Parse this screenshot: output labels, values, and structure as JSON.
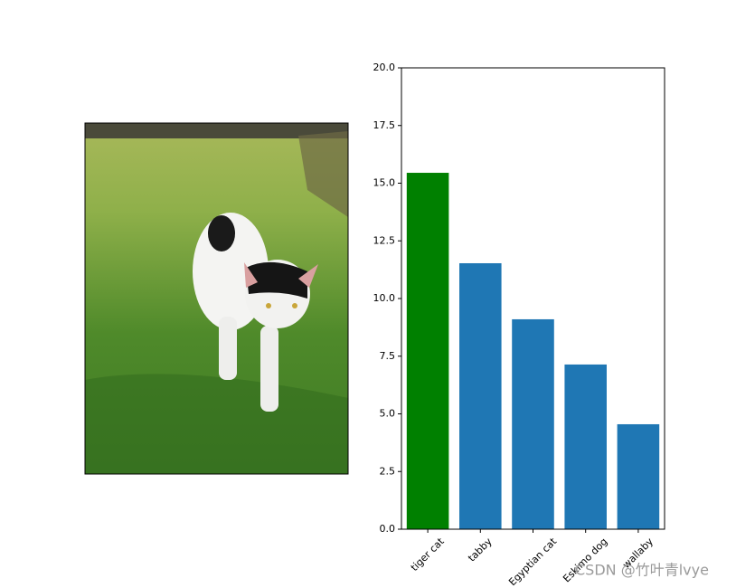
{
  "chart_data": {
    "type": "bar",
    "categories": [
      "tiger cat",
      "tabby",
      "Egyptian cat",
      "Eskimo dog",
      "wallaby"
    ],
    "values": [
      15.45,
      11.53,
      9.1,
      7.14,
      4.55
    ],
    "colors": [
      "#008000",
      "#1f77b4",
      "#1f77b4",
      "#1f77b4",
      "#1f77b4"
    ],
    "ylim": [
      0,
      20
    ],
    "yticks": [
      {
        "value": 0,
        "label": "0.0"
      },
      2.5,
      {
        "value": 5,
        "label": "5.0"
      },
      7.5,
      {
        "value": 10,
        "label": "10.0"
      },
      12.5,
      {
        "value": 15,
        "label": "15.0"
      },
      17.5,
      {
        "value": 20,
        "label": "20.0"
      }
    ]
  },
  "watermark": "CSDN @竹叶青lvye"
}
